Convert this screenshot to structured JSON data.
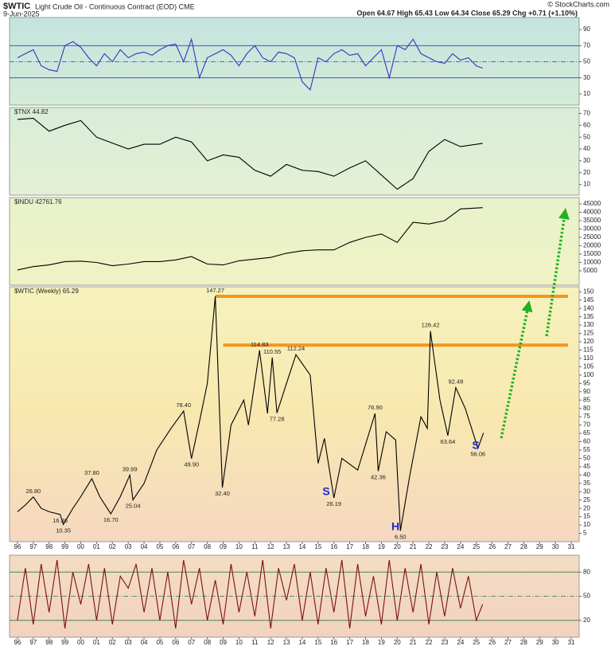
{
  "header": {
    "symbol": "$WTIC",
    "name": "Light Crude Oil - Continuous Contract (EOD) CME",
    "date": "9-Jun-2025",
    "quote": "Open 64.67  High 65.43  Low 64.34  Close 65.29  Chg +0.71 (+1.10%)",
    "credit": "© StockCharts.com"
  },
  "chart_data": [
    {
      "type": "line",
      "color": "#3434c0",
      "xlim": [
        1995.5,
        2031.5
      ],
      "ylim": [
        -4,
        105
      ],
      "yticks": [
        10,
        30,
        50,
        70,
        90
      ],
      "ref_lines": [
        30,
        50,
        70
      ],
      "ref_color": "#3a3ab0",
      "x": [
        1996,
        1996.5,
        1997,
        1997.5,
        1998,
        1998.5,
        1999,
        1999.5,
        2000,
        2000.5,
        2001,
        2001.5,
        2002,
        2002.5,
        2003,
        2003.5,
        2004,
        2004.5,
        2005,
        2005.5,
        2006,
        2006.5,
        2007,
        2007.5,
        2008,
        2008.5,
        2009,
        2009.5,
        2010,
        2010.5,
        2011,
        2011.5,
        2012,
        2012.5,
        2013,
        2013.5,
        2014,
        2014.5,
        2015,
        2015.5,
        2016,
        2016.5,
        2017,
        2017.5,
        2018,
        2018.5,
        2019,
        2019.5,
        2020,
        2020.5,
        2021,
        2021.5,
        2022,
        2022.5,
        2023,
        2023.5,
        2024,
        2024.5,
        2025,
        2025.4
      ],
      "values": [
        55,
        60,
        65,
        45,
        40,
        38,
        70,
        75,
        68,
        55,
        45,
        60,
        50,
        65,
        55,
        60,
        62,
        58,
        65,
        70,
        72,
        50,
        78,
        30,
        55,
        60,
        65,
        58,
        45,
        60,
        70,
        55,
        50,
        62,
        60,
        55,
        25,
        15,
        55,
        50,
        60,
        65,
        58,
        60,
        45,
        55,
        65,
        30,
        70,
        65,
        78,
        60,
        55,
        50,
        48,
        60,
        52,
        55,
        45,
        42
      ]
    },
    {
      "type": "line",
      "title": "$TNX 44.82",
      "color": "#000000",
      "xlim": [
        1995.5,
        2031.5
      ],
      "ylim": [
        1,
        75
      ],
      "yticks": [
        10,
        20,
        30,
        40,
        50,
        60,
        70
      ],
      "x": [
        1996,
        1997,
        1998,
        1999,
        2000,
        2001,
        2002,
        2003,
        2004,
        2005,
        2006,
        2007,
        2008,
        2009,
        2010,
        2011,
        2012,
        2013,
        2014,
        2015,
        2016,
        2017,
        2018,
        2019,
        2020,
        2021,
        2022,
        2023,
        2024,
        2025.4
      ],
      "values": [
        65,
        66,
        55,
        60,
        64,
        50,
        45,
        40,
        44,
        44,
        50,
        46,
        30,
        35,
        33,
        22,
        17,
        27,
        22,
        21,
        17,
        24,
        30,
        18,
        6,
        15,
        38,
        48,
        42,
        44.82
      ]
    },
    {
      "type": "line",
      "title": "$INDU 42761.76",
      "color": "#000000",
      "xlim": [
        1995.5,
        2031.5
      ],
      "ylim": [
        -3600,
        48800
      ],
      "yticks": [
        5000,
        10000,
        15000,
        20000,
        25000,
        30000,
        35000,
        40000,
        45000
      ],
      "x": [
        1996,
        1997,
        1998,
        1999,
        2000,
        2001,
        2002,
        2003,
        2004,
        2005,
        2006,
        2007,
        2008,
        2009,
        2010,
        2011,
        2012,
        2013,
        2014,
        2015,
        2016,
        2017,
        2018,
        2019,
        2020,
        2021,
        2022,
        2023,
        2024,
        2025.4
      ],
      "values": [
        5500,
        7500,
        8500,
        10500,
        10800,
        10000,
        8000,
        9000,
        10500,
        10500,
        11500,
        13500,
        9000,
        8500,
        11000,
        12000,
        13000,
        15500,
        17000,
        17500,
        17500,
        22000,
        25000,
        27000,
        22000,
        34000,
        33000,
        35000,
        42000,
        42761.76
      ]
    },
    {
      "type": "line",
      "title": "$WTIC (Weekly) 65.29",
      "color": "#000000",
      "xlim": [
        1995.5,
        2031.5
      ],
      "ylim": [
        0,
        153
      ],
      "yticks": [
        5,
        10,
        15,
        20,
        25,
        30,
        35,
        40,
        45,
        50,
        55,
        60,
        65,
        70,
        75,
        80,
        85,
        90,
        95,
        100,
        105,
        110,
        115,
        120,
        125,
        130,
        135,
        140,
        145,
        150
      ],
      "xticks": [
        {
          "value": 1996,
          "label": "96"
        },
        {
          "value": 1997,
          "label": "97"
        },
        {
          "value": 1998,
          "label": "98"
        },
        {
          "value": 1999,
          "label": "99"
        },
        {
          "value": 2000,
          "label": "00"
        },
        {
          "value": 2001,
          "label": "01"
        },
        {
          "value": 2002,
          "label": "02"
        },
        {
          "value": 2003,
          "label": "03"
        },
        {
          "value": 2004,
          "label": "04"
        },
        {
          "value": 2005,
          "label": "05"
        },
        {
          "value": 2006,
          "label": "06"
        },
        {
          "value": 2007,
          "label": "07"
        },
        {
          "value": 2008,
          "label": "08"
        },
        {
          "value": 2009,
          "label": "09"
        },
        {
          "value": 2010,
          "label": "10"
        },
        {
          "value": 2011,
          "label": "11"
        },
        {
          "value": 2012,
          "label": "12"
        },
        {
          "value": 2013,
          "label": "13"
        },
        {
          "value": 2014,
          "label": "14"
        },
        {
          "value": 2015,
          "label": "15"
        },
        {
          "value": 2016,
          "label": "16"
        },
        {
          "value": 2017,
          "label": "17"
        },
        {
          "value": 2018,
          "label": "18"
        },
        {
          "value": 2019,
          "label": "19"
        },
        {
          "value": 2020,
          "label": "20"
        },
        {
          "value": 2021,
          "label": "21"
        },
        {
          "value": 2022,
          "label": "22"
        },
        {
          "value": 2023,
          "label": "23"
        },
        {
          "value": 2024,
          "label": "24"
        },
        {
          "value": 2025,
          "label": "25"
        },
        {
          "value": 2026,
          "label": "26"
        },
        {
          "value": 2027,
          "label": "27"
        },
        {
          "value": 2028,
          "label": "28"
        },
        {
          "value": 2029,
          "label": "29"
        },
        {
          "value": 2030,
          "label": "30"
        },
        {
          "value": 2031,
          "label": "31"
        }
      ],
      "x": [
        1996,
        1996.5,
        1997,
        1997.5,
        1998,
        1998.7,
        1998.9,
        1999.5,
        2000,
        2000.7,
        2001.2,
        2001.9,
        2002.5,
        2003.1,
        2003.3,
        2004,
        2004.8,
        2005.7,
        2006.5,
        2007,
        2007.5,
        2008,
        2008.5,
        2008.95,
        2009.5,
        2010.3,
        2010.6,
        2011.3,
        2011.8,
        2012.1,
        2012.4,
        2013,
        2013.6,
        2014.5,
        2015,
        2015.4,
        2016,
        2016.5,
        2017.5,
        2018.6,
        2018.8,
        2019.3,
        2019.9,
        2020.2,
        2020.8,
        2021.5,
        2021.9,
        2022.1,
        2022.7,
        2023.2,
        2023.7,
        2024.3,
        2024.7,
        2025.1,
        2025.45
      ],
      "values": [
        18,
        22,
        26.8,
        20,
        18,
        16.36,
        10.35,
        20,
        27,
        37.8,
        27,
        16.7,
        27,
        39.99,
        25.04,
        35,
        55,
        68,
        78.4,
        49.9,
        72,
        95,
        147.27,
        32.4,
        70,
        85,
        70,
        114.83,
        77,
        110.55,
        77.28,
        95,
        112.24,
        100,
        47,
        62,
        26.19,
        50,
        43,
        76.9,
        42.36,
        66,
        61,
        6.5,
        40,
        75,
        68,
        126.42,
        85,
        63.64,
        92.48,
        80,
        68,
        56.06,
        65.29
      ],
      "price_labels": [
        {
          "x": 1997,
          "value": 26.8,
          "label": "26.80"
        },
        {
          "x": 1998.7,
          "value": 16.36,
          "label": "16.36"
        },
        {
          "x": 1998.9,
          "value": 10.35,
          "label": "10.35"
        },
        {
          "x": 2000.7,
          "value": 37.8,
          "label": "37.80"
        },
        {
          "x": 2001.9,
          "value": 16.7,
          "label": "16.70"
        },
        {
          "x": 2003.1,
          "value": 39.99,
          "label": "39.99"
        },
        {
          "x": 2003.3,
          "value": 25.04,
          "label": "25.04"
        },
        {
          "x": 2006.5,
          "value": 78.4,
          "label": "78.40"
        },
        {
          "x": 2007,
          "value": 49.9,
          "label": "49.90"
        },
        {
          "x": 2008.5,
          "value": 147.27,
          "label": "147.27"
        },
        {
          "x": 2008.95,
          "value": 32.4,
          "label": "32.40"
        },
        {
          "x": 2011.3,
          "value": 114.83,
          "label": "114.83"
        },
        {
          "x": 2012.1,
          "value": 110.55,
          "label": "110.55"
        },
        {
          "x": 2012.4,
          "value": 77.28,
          "label": "77.28"
        },
        {
          "x": 2013.6,
          "value": 112.24,
          "label": "112.24"
        },
        {
          "x": 2016,
          "value": 26.19,
          "label": "26.19"
        },
        {
          "x": 2018.6,
          "value": 76.9,
          "label": "76.90"
        },
        {
          "x": 2018.8,
          "value": 42.36,
          "label": "42.36"
        },
        {
          "x": 2020.2,
          "value": 6.5,
          "label": "6.50"
        },
        {
          "x": 2022.1,
          "value": 126.42,
          "label": "126.42"
        },
        {
          "x": 2023.2,
          "value": 63.64,
          "label": "63.64"
        },
        {
          "x": 2023.7,
          "value": 92.48,
          "label": "92.48"
        },
        {
          "x": 2025.1,
          "value": 56.06,
          "label": "56.06"
        }
      ],
      "pattern_labels": [
        "S",
        "H",
        "S"
      ],
      "reference_lines": [
        {
          "value": 147.27,
          "from": 2008.5,
          "to": 2030.8,
          "color": "#f7941d"
        },
        {
          "value": 118,
          "from": 2009,
          "to": 2030.8,
          "color": "#f7941d"
        }
      ]
    },
    {
      "type": "line",
      "color": "#7a1010",
      "xlim": [
        1995.5,
        2031.5
      ],
      "ylim": [
        -1,
        101
      ],
      "yticks": [
        20,
        50,
        80
      ],
      "ref_lines": [
        20,
        50,
        80
      ],
      "ref_color": "#2e7d32",
      "xticks": [
        {
          "value": 1996,
          "label": "96"
        },
        {
          "value": 1997,
          "label": "97"
        },
        {
          "value": 1998,
          "label": "98"
        },
        {
          "value": 1999,
          "label": "99"
        },
        {
          "value": 2000,
          "label": "00"
        },
        {
          "value": 2001,
          "label": "01"
        },
        {
          "value": 2002,
          "label": "02"
        },
        {
          "value": 2003,
          "label": "03"
        },
        {
          "value": 2004,
          "label": "04"
        },
        {
          "value": 2005,
          "label": "05"
        },
        {
          "value": 2006,
          "label": "06"
        },
        {
          "value": 2007,
          "label": "07"
        },
        {
          "value": 2008,
          "label": "08"
        },
        {
          "value": 2009,
          "label": "09"
        },
        {
          "value": 2010,
          "label": "10"
        },
        {
          "value": 2011,
          "label": "11"
        },
        {
          "value": 2012,
          "label": "12"
        },
        {
          "value": 2013,
          "label": "13"
        },
        {
          "value": 2014,
          "label": "14"
        },
        {
          "value": 2015,
          "label": "15"
        },
        {
          "value": 2016,
          "label": "16"
        },
        {
          "value": 2017,
          "label": "17"
        },
        {
          "value": 2018,
          "label": "18"
        },
        {
          "value": 2019,
          "label": "19"
        },
        {
          "value": 2020,
          "label": "20"
        },
        {
          "value": 2021,
          "label": "21"
        },
        {
          "value": 2022,
          "label": "22"
        },
        {
          "value": 2023,
          "label": "23"
        },
        {
          "value": 2024,
          "label": "24"
        },
        {
          "value": 2025,
          "label": "25"
        },
        {
          "value": 2026,
          "label": "26"
        },
        {
          "value": 2027,
          "label": "27"
        },
        {
          "value": 2028,
          "label": "28"
        },
        {
          "value": 2029,
          "label": "29"
        },
        {
          "value": 2030,
          "label": "30"
        },
        {
          "value": 2031,
          "label": "31"
        }
      ],
      "x": [
        1996,
        1996.5,
        1997,
        1997.5,
        1998,
        1998.5,
        1999,
        1999.5,
        2000,
        2000.5,
        2001,
        2001.5,
        2002,
        2002.5,
        2003,
        2003.5,
        2004,
        2004.5,
        2005,
        2005.5,
        2006,
        2006.5,
        2007,
        2007.5,
        2008,
        2008.5,
        2009,
        2009.5,
        2010,
        2010.5,
        2011,
        2011.5,
        2012,
        2012.5,
        2013,
        2013.5,
        2014,
        2014.5,
        2015,
        2015.5,
        2016,
        2016.5,
        2017,
        2017.5,
        2018,
        2018.5,
        2019,
        2019.5,
        2020,
        2020.5,
        2021,
        2021.5,
        2022,
        2022.5,
        2023,
        2023.5,
        2024,
        2024.5,
        2025,
        2025.4
      ],
      "values": [
        20,
        85,
        15,
        90,
        30,
        95,
        10,
        80,
        40,
        90,
        20,
        85,
        15,
        75,
        60,
        90,
        30,
        85,
        20,
        80,
        10,
        95,
        40,
        85,
        20,
        70,
        15,
        90,
        30,
        80,
        25,
        95,
        10,
        85,
        45,
        90,
        20,
        80,
        15,
        85,
        30,
        95,
        10,
        90,
        25,
        75,
        15,
        95,
        20,
        85,
        30,
        90,
        15,
        80,
        25,
        85,
        35,
        75,
        20,
        40
      ]
    }
  ]
}
